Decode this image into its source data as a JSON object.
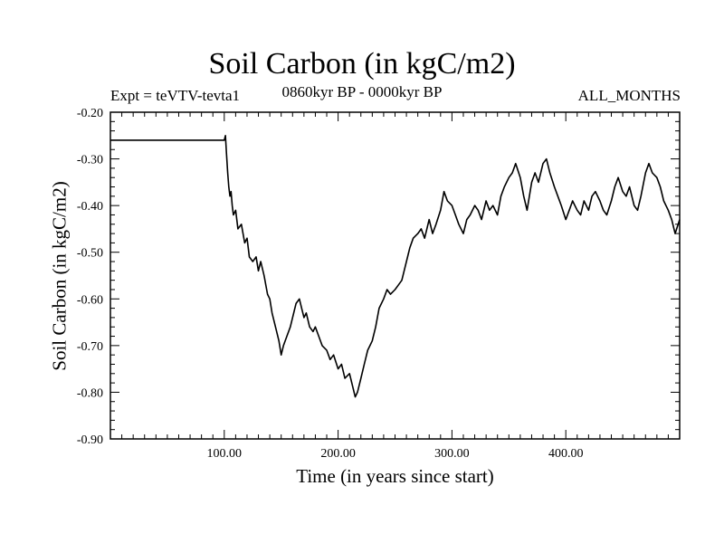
{
  "chart_data": {
    "type": "line",
    "title": "Soil Carbon (in kgC/m2)",
    "subtitle_left": "Expt = teVTV-tevta1",
    "subtitle_center": "0860kyr BP - 0000kyr BP",
    "subtitle_right": "ALL_MONTHS",
    "xlabel": "Time (in years since start)",
    "ylabel": "Soil Carbon (in kgC/m2)",
    "xlim": [
      0,
      500
    ],
    "ylim": [
      -0.9,
      -0.2
    ],
    "x_ticks": [
      100,
      200,
      300,
      400
    ],
    "x_tick_labels": [
      "100.00",
      "200.00",
      "300.00",
      "400.00"
    ],
    "y_ticks": [
      -0.2,
      -0.3,
      -0.4,
      -0.5,
      -0.6,
      -0.7,
      -0.8,
      -0.9
    ],
    "y_tick_labels": [
      "-0.20",
      "-0.30",
      "-0.40",
      "-0.50",
      "-0.60",
      "-0.70",
      "-0.80",
      "-0.90"
    ],
    "grid": false,
    "series": [
      {
        "name": "Soil Carbon",
        "color": "#000000",
        "x": [
          0,
          99,
          100,
          101,
          102,
          103,
          104,
          105,
          106,
          107,
          108,
          110,
          112,
          115,
          118,
          120,
          122,
          125,
          128,
          130,
          132,
          135,
          138,
          140,
          142,
          145,
          148,
          150,
          152,
          155,
          158,
          160,
          163,
          166,
          168,
          170,
          172,
          175,
          178,
          180,
          183,
          186,
          190,
          193,
          196,
          200,
          203,
          206,
          210,
          213,
          215,
          217,
          220,
          223,
          226,
          230,
          233,
          236,
          240,
          243,
          246,
          250,
          253,
          256,
          260,
          263,
          266,
          270,
          273,
          276,
          280,
          283,
          286,
          290,
          293,
          296,
          300,
          303,
          306,
          310,
          313,
          316,
          320,
          323,
          326,
          330,
          333,
          336,
          340,
          343,
          346,
          350,
          353,
          356,
          360,
          363,
          366,
          370,
          373,
          376,
          380,
          383,
          386,
          390,
          393,
          396,
          400,
          403,
          406,
          410,
          413,
          416,
          420,
          423,
          426,
          430,
          433,
          436,
          440,
          443,
          446,
          450,
          453,
          456,
          460,
          463,
          466,
          470,
          473,
          476,
          480,
          483,
          486,
          490,
          493,
          496,
          500
        ],
        "y": [
          -0.26,
          -0.26,
          -0.26,
          -0.25,
          -0.29,
          -0.33,
          -0.36,
          -0.38,
          -0.37,
          -0.4,
          -0.42,
          -0.41,
          -0.45,
          -0.44,
          -0.48,
          -0.47,
          -0.51,
          -0.52,
          -0.51,
          -0.54,
          -0.52,
          -0.55,
          -0.59,
          -0.6,
          -0.63,
          -0.66,
          -0.69,
          -0.72,
          -0.7,
          -0.68,
          -0.66,
          -0.64,
          -0.61,
          -0.6,
          -0.62,
          -0.64,
          -0.63,
          -0.66,
          -0.67,
          -0.66,
          -0.68,
          -0.7,
          -0.71,
          -0.73,
          -0.72,
          -0.75,
          -0.74,
          -0.77,
          -0.76,
          -0.79,
          -0.81,
          -0.8,
          -0.77,
          -0.74,
          -0.71,
          -0.69,
          -0.66,
          -0.62,
          -0.6,
          -0.58,
          -0.59,
          -0.58,
          -0.57,
          -0.56,
          -0.52,
          -0.49,
          -0.47,
          -0.46,
          -0.45,
          -0.47,
          -0.43,
          -0.46,
          -0.44,
          -0.41,
          -0.37,
          -0.39,
          -0.4,
          -0.42,
          -0.44,
          -0.46,
          -0.43,
          -0.42,
          -0.4,
          -0.41,
          -0.43,
          -0.39,
          -0.41,
          -0.4,
          -0.42,
          -0.38,
          -0.36,
          -0.34,
          -0.33,
          -0.31,
          -0.34,
          -0.38,
          -0.41,
          -0.35,
          -0.33,
          -0.35,
          -0.31,
          -0.3,
          -0.33,
          -0.36,
          -0.38,
          -0.4,
          -0.43,
          -0.41,
          -0.39,
          -0.41,
          -0.42,
          -0.39,
          -0.41,
          -0.38,
          -0.37,
          -0.39,
          -0.41,
          -0.42,
          -0.39,
          -0.36,
          -0.34,
          -0.37,
          -0.38,
          -0.36,
          -0.4,
          -0.41,
          -0.38,
          -0.33,
          -0.31,
          -0.33,
          -0.34,
          -0.36,
          -0.39,
          -0.41,
          -0.43,
          -0.46,
          -0.43
        ]
      }
    ]
  }
}
